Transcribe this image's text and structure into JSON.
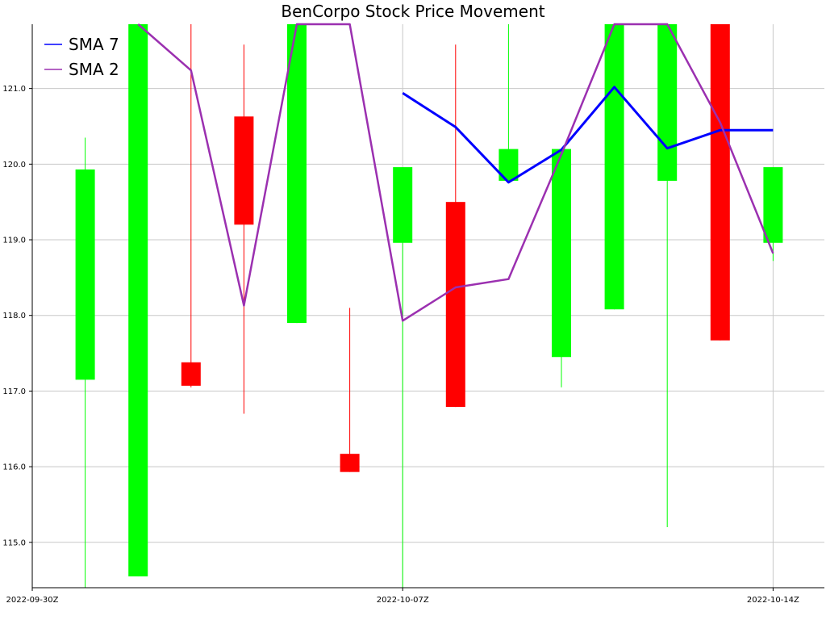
{
  "chart_data": {
    "type": "candlestick",
    "title": "BenCorpo Stock Price Movement",
    "xlabel": "",
    "ylabel": "",
    "ylim": [
      114.4,
      121.85
    ],
    "y_ticks": [
      "115.0",
      "116.0",
      "117.0",
      "118.0",
      "119.0",
      "120.0",
      "121.0"
    ],
    "x_ticks": [
      {
        "label": "2022-09-30Z",
        "day": 0
      },
      {
        "label": "2022-10-07Z",
        "day": 7
      },
      {
        "label": "2022-10-14Z",
        "day": 14
      }
    ],
    "grid": true,
    "legend_position": "top-left",
    "up_color": "#00ff00",
    "down_color": "#ff0000",
    "candles": [
      {
        "date": "2022-10-01",
        "open": 117.15,
        "close": 119.93,
        "high": 120.35,
        "low": 114.4
      },
      {
        "date": "2022-10-02",
        "open": 114.55,
        "close": 121.85,
        "high": 121.85,
        "low": 114.55
      },
      {
        "date": "2022-10-03",
        "open": 117.38,
        "close": 117.07,
        "high": 121.85,
        "low": 117.05
      },
      {
        "date": "2022-10-04",
        "open": 120.63,
        "close": 119.2,
        "high": 121.58,
        "low": 116.7
      },
      {
        "date": "2022-10-05",
        "open": 117.9,
        "close": 121.85,
        "high": 121.85,
        "low": 117.9
      },
      {
        "date": "2022-10-06",
        "open": 116.17,
        "close": 115.93,
        "high": 118.1,
        "low": 115.93
      },
      {
        "date": "2022-10-07",
        "open": 118.96,
        "close": 119.96,
        "high": 119.96,
        "low": 114.4
      },
      {
        "date": "2022-10-08",
        "open": 119.5,
        "close": 116.79,
        "high": 121.58,
        "low": 116.79
      },
      {
        "date": "2022-10-09",
        "open": 119.78,
        "close": 120.2,
        "high": 121.85,
        "low": 119.78
      },
      {
        "date": "2022-10-10",
        "open": 117.45,
        "close": 120.2,
        "high": 120.2,
        "low": 117.05
      },
      {
        "date": "2022-10-11",
        "open": 118.08,
        "close": 121.85,
        "high": 121.85,
        "low": 118.08
      },
      {
        "date": "2022-10-12",
        "open": 119.78,
        "close": 121.85,
        "high": 121.85,
        "low": 115.2
      },
      {
        "date": "2022-10-13",
        "open": 121.85,
        "close": 117.67,
        "high": 121.85,
        "low": 117.67
      },
      {
        "date": "2022-10-14",
        "open": 118.96,
        "close": 119.96,
        "high": 119.96,
        "low": 118.72
      }
    ],
    "series": [
      {
        "name": "SMA 7",
        "color": "#0000ff",
        "points": [
          {
            "date": "2022-10-07",
            "value": 120.94
          },
          {
            "date": "2022-10-08",
            "value": 120.49
          },
          {
            "date": "2022-10-09",
            "value": 119.76
          },
          {
            "date": "2022-10-10",
            "value": 120.19
          },
          {
            "date": "2022-10-11",
            "value": 121.02
          },
          {
            "date": "2022-10-12",
            "value": 120.21
          },
          {
            "date": "2022-10-13",
            "value": 120.45
          },
          {
            "date": "2022-10-14",
            "value": 120.45
          }
        ]
      },
      {
        "name": "SMA 2",
        "color": "#9b30b0",
        "points": [
          {
            "date": "2022-10-02",
            "value": 121.85
          },
          {
            "date": "2022-10-03",
            "value": 121.24
          },
          {
            "date": "2022-10-04",
            "value": 118.13
          },
          {
            "date": "2022-10-05",
            "value": 121.85
          },
          {
            "date": "2022-10-06",
            "value": 121.85
          },
          {
            "date": "2022-10-07",
            "value": 117.93
          },
          {
            "date": "2022-10-08",
            "value": 118.37
          },
          {
            "date": "2022-10-09",
            "value": 118.48
          },
          {
            "date": "2022-10-10",
            "value": 120.13
          },
          {
            "date": "2022-10-11",
            "value": 121.85
          },
          {
            "date": "2022-10-12",
            "value": 121.85
          },
          {
            "date": "2022-10-13",
            "value": 120.55
          },
          {
            "date": "2022-10-14",
            "value": 118.82
          }
        ]
      }
    ]
  }
}
